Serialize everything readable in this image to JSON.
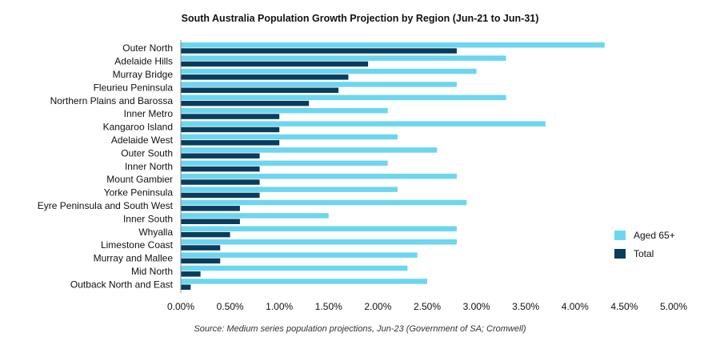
{
  "chart_data": {
    "type": "bar",
    "orientation": "horizontal",
    "title": "South Australia Population Growth Projection by Region (Jun-21 to Jun-31)",
    "source": "Source: Medium series population projections, Jun-23 (Government of SA; Cromwell)",
    "categories": [
      "Outer North",
      "Adelaide Hills",
      "Murray Bridge",
      "Fleurieu Peninsula",
      "Northern Plains and Barossa",
      "Inner Metro",
      "Kangaroo Island",
      "Adelaide West",
      "Outer South",
      "Inner North",
      "Mount Gambier",
      "Yorke Peninsula",
      "Eyre Peninsula and South West",
      "Inner South",
      "Whyalla",
      "Limestone Coast",
      "Murray and Mallee",
      "Mid North",
      "Outback North and East"
    ],
    "series": [
      {
        "name": "Aged 65+",
        "color": "#6dd6ef",
        "values": [
          4.3,
          3.3,
          3.0,
          2.8,
          3.3,
          2.1,
          3.7,
          2.2,
          2.6,
          2.1,
          2.8,
          2.2,
          2.9,
          1.5,
          2.8,
          2.8,
          2.4,
          2.3,
          2.5
        ]
      },
      {
        "name": "Total",
        "color": "#0a3d5c",
        "values": [
          2.8,
          1.9,
          1.7,
          1.6,
          1.3,
          1.0,
          1.0,
          1.0,
          0.8,
          0.8,
          0.8,
          0.8,
          0.6,
          0.6,
          0.5,
          0.4,
          0.4,
          0.2,
          0.1
        ]
      }
    ],
    "xlim": [
      0,
      5
    ],
    "xticks": [
      "0.00%",
      "0.50%",
      "1.00%",
      "1.50%",
      "2.00%",
      "2.50%",
      "3.00%",
      "3.50%",
      "4.00%",
      "4.50%",
      "5.00%"
    ],
    "legend_position": "right",
    "grid": false
  }
}
